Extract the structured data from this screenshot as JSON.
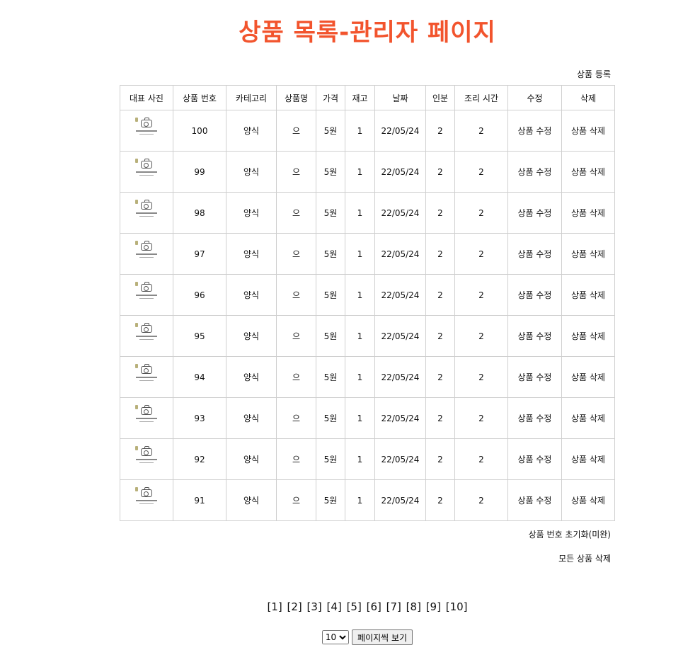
{
  "page": {
    "title": "상품 목록-관리자 페이지"
  },
  "links": {
    "register": "상품 등록",
    "reset_ids": "상품 번호 초기화(미완)",
    "delete_all": "모든 상품 삭제"
  },
  "table": {
    "headers": [
      "대표 사진",
      "상품 번호",
      "카테고리",
      "상품명",
      "가격",
      "재고",
      "날짜",
      "인분",
      "조리 시간",
      "수정",
      "삭제"
    ],
    "rows": [
      {
        "id": "100",
        "category": "양식",
        "name": "으",
        "price": "5원",
        "stock": "1",
        "date": "22/05/24",
        "servings": "2",
        "cook_time": "2",
        "edit": "상품 수정",
        "delete": "상품 삭제"
      },
      {
        "id": "99",
        "category": "양식",
        "name": "으",
        "price": "5원",
        "stock": "1",
        "date": "22/05/24",
        "servings": "2",
        "cook_time": "2",
        "edit": "상품 수정",
        "delete": "상품 삭제"
      },
      {
        "id": "98",
        "category": "양식",
        "name": "으",
        "price": "5원",
        "stock": "1",
        "date": "22/05/24",
        "servings": "2",
        "cook_time": "2",
        "edit": "상품 수정",
        "delete": "상품 삭제"
      },
      {
        "id": "97",
        "category": "양식",
        "name": "으",
        "price": "5원",
        "stock": "1",
        "date": "22/05/24",
        "servings": "2",
        "cook_time": "2",
        "edit": "상품 수정",
        "delete": "상품 삭제"
      },
      {
        "id": "96",
        "category": "양식",
        "name": "으",
        "price": "5원",
        "stock": "1",
        "date": "22/05/24",
        "servings": "2",
        "cook_time": "2",
        "edit": "상품 수정",
        "delete": "상품 삭제"
      },
      {
        "id": "95",
        "category": "양식",
        "name": "으",
        "price": "5원",
        "stock": "1",
        "date": "22/05/24",
        "servings": "2",
        "cook_time": "2",
        "edit": "상품 수정",
        "delete": "상품 삭제"
      },
      {
        "id": "94",
        "category": "양식",
        "name": "으",
        "price": "5원",
        "stock": "1",
        "date": "22/05/24",
        "servings": "2",
        "cook_time": "2",
        "edit": "상품 수정",
        "delete": "상품 삭제"
      },
      {
        "id": "93",
        "category": "양식",
        "name": "으",
        "price": "5원",
        "stock": "1",
        "date": "22/05/24",
        "servings": "2",
        "cook_time": "2",
        "edit": "상품 수정",
        "delete": "상품 삭제"
      },
      {
        "id": "92",
        "category": "양식",
        "name": "으",
        "price": "5원",
        "stock": "1",
        "date": "22/05/24",
        "servings": "2",
        "cook_time": "2",
        "edit": "상품 수정",
        "delete": "상품 삭제"
      },
      {
        "id": "91",
        "category": "양식",
        "name": "으",
        "price": "5원",
        "stock": "1",
        "date": "22/05/24",
        "servings": "2",
        "cook_time": "2",
        "edit": "상품 수정",
        "delete": "상품 삭제"
      }
    ],
    "thumbnail_icon": "camera-placeholder-icon"
  },
  "pagination": {
    "pages": [
      "[1]",
      "[2]",
      "[3]",
      "[4]",
      "[5]",
      "[6]",
      "[7]",
      "[8]",
      "[9]",
      "[10]"
    ]
  },
  "controls": {
    "page_size_selected": "10",
    "page_size_options": [
      "10"
    ],
    "view_button": "페이지씩 보기"
  },
  "colors": {
    "title": "#f2542d",
    "border": "#cfcfcf"
  }
}
